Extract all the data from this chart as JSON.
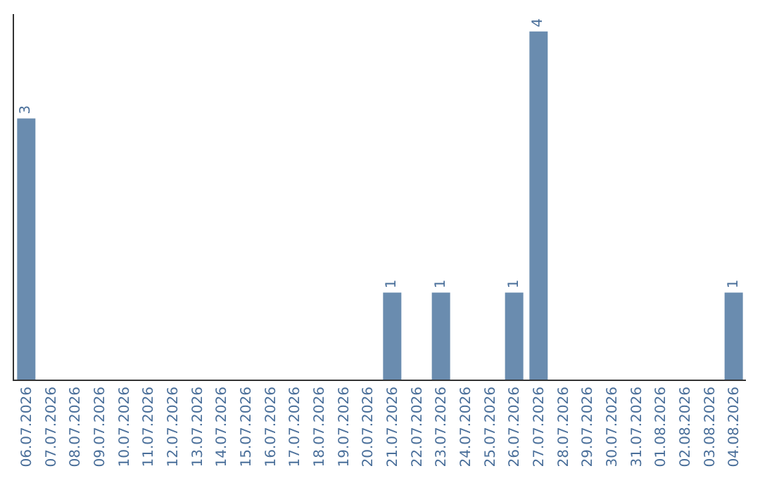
{
  "chart_data": {
    "type": "bar",
    "categories": [
      "06.07.2026",
      "07.07.2026",
      "08.07.2026",
      "09.07.2026",
      "10.07.2026",
      "11.07.2026",
      "12.07.2026",
      "13.07.2026",
      "14.07.2026",
      "15.07.2026",
      "16.07.2026",
      "17.07.2026",
      "18.07.2026",
      "19.07.2026",
      "20.07.2026",
      "21.07.2026",
      "22.07.2026",
      "23.07.2026",
      "24.07.2026",
      "25.07.2026",
      "26.07.2026",
      "27.07.2026",
      "28.07.2026",
      "29.07.2026",
      "30.07.2026",
      "31.07.2026",
      "01.08.2026",
      "02.08.2026",
      "03.08.2026",
      "04.08.2026"
    ],
    "values": [
      3,
      0,
      0,
      0,
      0,
      0,
      0,
      0,
      0,
      0,
      0,
      0,
      0,
      0,
      0,
      1,
      0,
      1,
      0,
      0,
      1,
      4,
      0,
      0,
      0,
      0,
      0,
      0,
      0,
      1
    ],
    "value_labels": [
      "3",
      null,
      null,
      null,
      null,
      null,
      null,
      null,
      null,
      null,
      null,
      null,
      null,
      null,
      null,
      "1",
      null,
      "1",
      null,
      null,
      "1",
      "4",
      null,
      null,
      null,
      null,
      null,
      null,
      null,
      "1"
    ],
    "color": "#6a8caf",
    "ylim": [
      0,
      4.2
    ],
    "grid": false,
    "legend": false
  }
}
